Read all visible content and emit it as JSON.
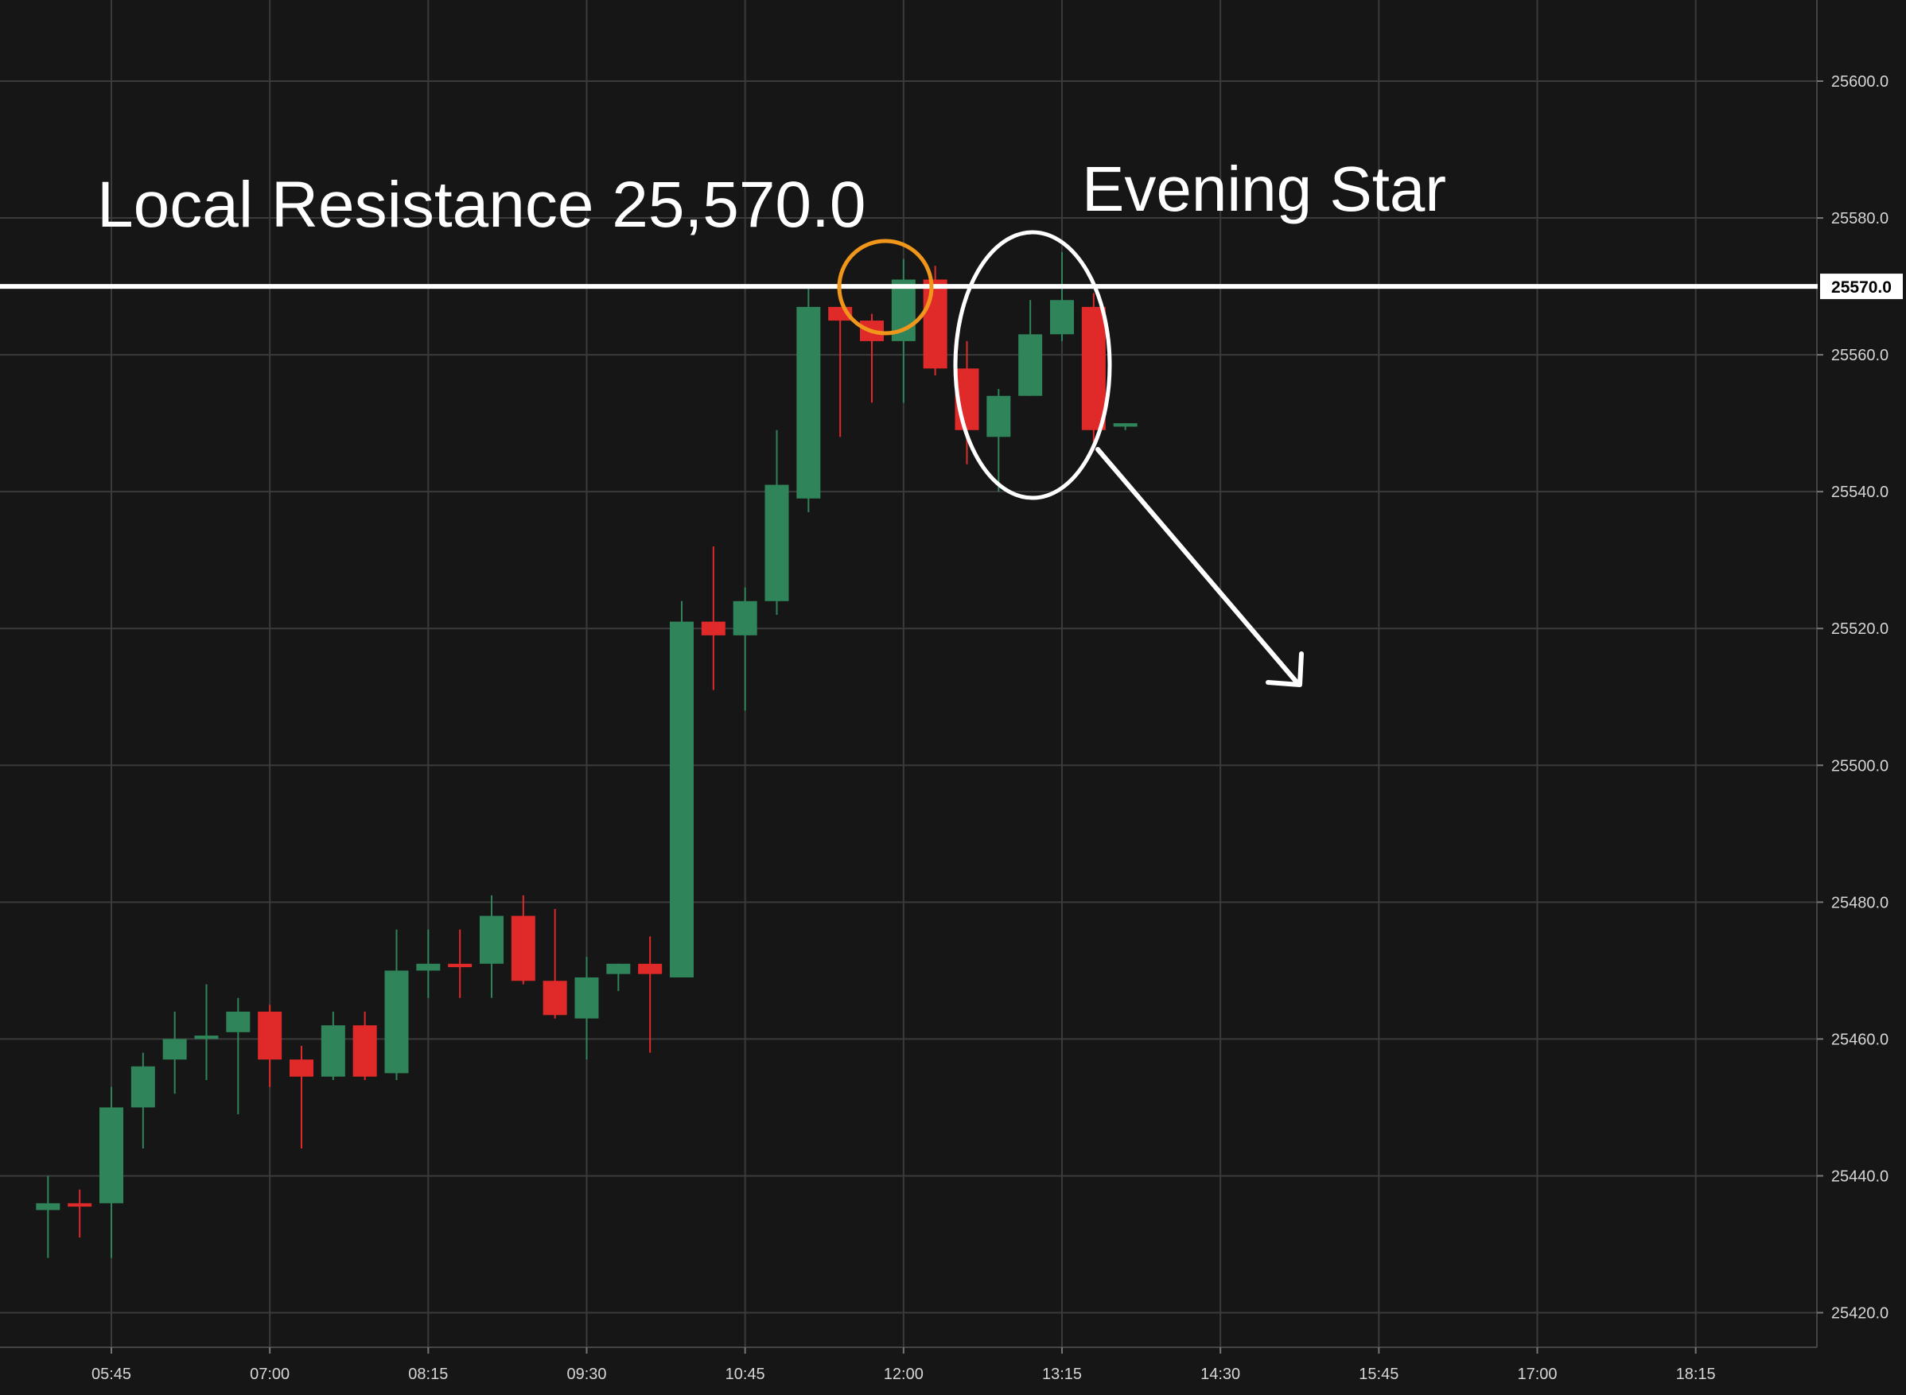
{
  "chart_data": {
    "type": "candlestick",
    "interval_minutes": 15,
    "x_tick_labels": [
      "05:45",
      "07:00",
      "08:15",
      "09:30",
      "10:45",
      "12:00",
      "13:15",
      "14:30",
      "15:45",
      "17:00",
      "18:15"
    ],
    "y_tick_values": [
      25420,
      25440,
      25460,
      25480,
      25500,
      25520,
      25540,
      25560,
      25580,
      25600
    ],
    "y_tick_labels": [
      "25420.0",
      "25440.0",
      "25460.0",
      "25480.0",
      "25500.0",
      "25520.0",
      "25540.0",
      "25560.0",
      "25580.0",
      "25600.0"
    ],
    "ylim": [
      25415,
      25612
    ],
    "grid": true,
    "colors": {
      "background": "#161616",
      "grid": "#3a3a3a",
      "up": "#2f8459",
      "down": "#e02a2a",
      "resistance": "#ffffff",
      "highlight_small": "#f0961a",
      "highlight_large": "#ffffff",
      "axis_text": "#d6d6d6"
    },
    "candles": [
      {
        "time": "05:15",
        "open": 25435,
        "high": 25440,
        "low": 25428,
        "close": 25436
      },
      {
        "time": "05:30",
        "open": 25436,
        "high": 25438,
        "low": 25431,
        "close": 25435.5
      },
      {
        "time": "05:45",
        "open": 25436,
        "high": 25453,
        "low": 25428,
        "close": 25450
      },
      {
        "time": "06:00",
        "open": 25450,
        "high": 25458,
        "low": 25444,
        "close": 25456
      },
      {
        "time": "06:15",
        "open": 25457,
        "high": 25464,
        "low": 25452,
        "close": 25460
      },
      {
        "time": "06:30",
        "open": 25460,
        "high": 25468,
        "low": 25454,
        "close": 25460.5
      },
      {
        "time": "06:45",
        "open": 25461,
        "high": 25466,
        "low": 25449,
        "close": 25464
      },
      {
        "time": "07:00",
        "open": 25464,
        "high": 25465,
        "low": 25453,
        "close": 25457
      },
      {
        "time": "07:15",
        "open": 25457,
        "high": 25459,
        "low": 25444,
        "close": 25454.5
      },
      {
        "time": "07:30",
        "open": 25454.5,
        "high": 25464,
        "low": 25454,
        "close": 25462
      },
      {
        "time": "07:45",
        "open": 25462,
        "high": 25464,
        "low": 25454,
        "close": 25454.5
      },
      {
        "time": "08:00",
        "open": 25455,
        "high": 25476,
        "low": 25454,
        "close": 25470
      },
      {
        "time": "08:15",
        "open": 25470,
        "high": 25476,
        "low": 25466,
        "close": 25471
      },
      {
        "time": "08:30",
        "open": 25471,
        "high": 25476,
        "low": 25466,
        "close": 25470.5
      },
      {
        "time": "08:45",
        "open": 25471,
        "high": 25481,
        "low": 25466,
        "close": 25478
      },
      {
        "time": "09:00",
        "open": 25478,
        "high": 25481,
        "low": 25468,
        "close": 25468.5
      },
      {
        "time": "09:15",
        "open": 25468.5,
        "high": 25479,
        "low": 25463,
        "close": 25463.5
      },
      {
        "time": "09:30",
        "open": 25463,
        "high": 25472,
        "low": 25457,
        "close": 25469
      },
      {
        "time": "09:45",
        "open": 25469.5,
        "high": 25471,
        "low": 25467,
        "close": 25471
      },
      {
        "time": "10:00",
        "open": 25471,
        "high": 25475,
        "low": 25458,
        "close": 25469.5
      },
      {
        "time": "10:15",
        "open": 25469,
        "high": 25524,
        "low": 25469,
        "close": 25521
      },
      {
        "time": "10:30",
        "open": 25521,
        "high": 25532,
        "low": 25511,
        "close": 25519
      },
      {
        "time": "10:45",
        "open": 25519,
        "high": 25526,
        "low": 25508,
        "close": 25524
      },
      {
        "time": "11:00",
        "open": 25524,
        "high": 25549,
        "low": 25522,
        "close": 25541
      },
      {
        "time": "11:15",
        "open": 25539,
        "high": 25570,
        "low": 25537,
        "close": 25567
      },
      {
        "time": "11:30",
        "open": 25567,
        "high": 25567,
        "low": 25548,
        "close": 25565
      },
      {
        "time": "11:45",
        "open": 25565,
        "high": 25566,
        "low": 25553,
        "close": 25562
      },
      {
        "time": "12:00",
        "open": 25562,
        "high": 25574,
        "low": 25553,
        "close": 25571
      },
      {
        "time": "12:15",
        "open": 25571,
        "high": 25573,
        "low": 25557,
        "close": 25558
      },
      {
        "time": "12:30",
        "open": 25558,
        "high": 25562,
        "low": 25544,
        "close": 25549
      },
      {
        "time": "12:45",
        "open": 25548,
        "high": 25555,
        "low": 25540,
        "close": 25554
      },
      {
        "time": "13:00",
        "open": 25554,
        "high": 25568,
        "low": 25554,
        "close": 25563
      },
      {
        "time": "13:15",
        "open": 25563,
        "high": 25575,
        "low": 25562,
        "close": 25568
      },
      {
        "time": "13:30",
        "open": 25567,
        "high": 25569,
        "low": 25546,
        "close": 25549
      },
      {
        "time": "13:45",
        "open": 25549.5,
        "high": 25550,
        "low": 25549,
        "close": 25550
      }
    ],
    "resistance_level": 25570,
    "resistance_tag": "25570.0",
    "annotations": {
      "resistance_label": "Local Resistance 25,570.0",
      "pattern_label": "Evening Star"
    }
  }
}
